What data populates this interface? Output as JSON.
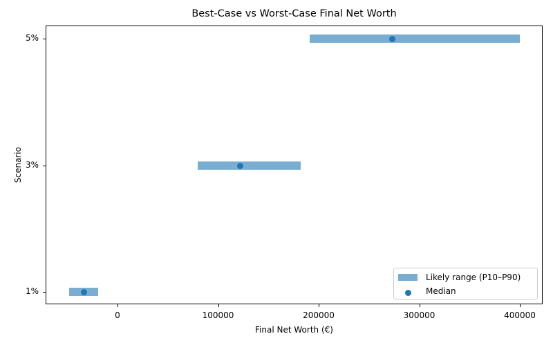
{
  "chart_data": {
    "type": "range-dot",
    "title": "Best-Case vs Worst-Case Final Net Worth",
    "xlabel": "Final Net Worth (€)",
    "ylabel": "Scenario",
    "xlim": [
      -70000,
      422000
    ],
    "x_ticks": [
      0,
      100000,
      200000,
      300000,
      400000
    ],
    "x_tick_labels": [
      "0",
      "100000",
      "200000",
      "300000",
      "400000"
    ],
    "categories": [
      "1%",
      "3%",
      "5%"
    ],
    "series": [
      {
        "name": "Likely range (P10–P90)",
        "type": "range",
        "low": [
          -48000,
          80000,
          191000
        ],
        "high": [
          -19000,
          182000,
          400000
        ],
        "color": "#1f77b4",
        "alpha": 0.6
      },
      {
        "name": "Median",
        "type": "scatter",
        "values": [
          -33000,
          122000,
          273000
        ],
        "color": "#1f77b4"
      }
    ],
    "grid": false,
    "legend_position": "lower right"
  },
  "legend": {
    "range_label": "Likely range (P10–P90)",
    "median_label": "Median"
  }
}
